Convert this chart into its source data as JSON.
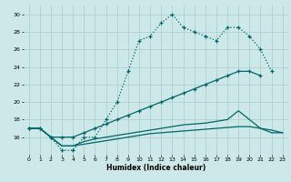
{
  "xlabel": "Humidex (Indice chaleur)",
  "bg_color": "#cce8e8",
  "grid_color": "#aacccc",
  "line_color": "#006666",
  "line1_y": [
    17.0,
    17.0,
    16.0,
    14.5,
    14.5,
    16.0,
    16.0,
    18.0,
    20.0,
    23.5,
    27.0,
    27.5,
    29.0,
    30.0,
    28.5,
    28.0,
    27.5,
    27.0,
    28.5,
    28.5,
    27.5,
    26.0,
    23.5,
    null
  ],
  "line2_y": [
    17.0,
    17.0,
    16.0,
    16.0,
    16.0,
    16.5,
    17.0,
    17.5,
    18.0,
    18.5,
    19.0,
    19.5,
    20.0,
    20.5,
    21.0,
    21.5,
    22.0,
    22.5,
    23.0,
    23.5,
    23.5,
    23.0,
    null,
    null
  ],
  "line3_y": [
    17.0,
    17.0,
    16.0,
    15.0,
    15.0,
    15.5,
    15.8,
    16.0,
    16.2,
    16.4,
    16.6,
    16.8,
    17.0,
    17.2,
    17.4,
    17.5,
    17.6,
    17.8,
    18.0,
    19.0,
    18.0,
    17.0,
    16.5,
    16.5
  ],
  "line4_y": [
    17.0,
    17.0,
    16.0,
    15.0,
    15.0,
    15.2,
    15.4,
    15.6,
    15.8,
    16.0,
    16.2,
    16.4,
    16.5,
    16.6,
    16.7,
    16.8,
    16.9,
    17.0,
    17.1,
    17.2,
    17.2,
    17.0,
    16.8,
    16.5
  ],
  "ylim": [
    14,
    31
  ],
  "xlim": [
    -0.5,
    23.5
  ],
  "yticks": [
    16,
    18,
    20,
    22,
    24,
    26,
    28,
    30
  ],
  "xticks": [
    0,
    1,
    2,
    3,
    4,
    5,
    6,
    7,
    8,
    9,
    10,
    11,
    12,
    13,
    14,
    15,
    16,
    17,
    18,
    19,
    20,
    21,
    22,
    23
  ]
}
